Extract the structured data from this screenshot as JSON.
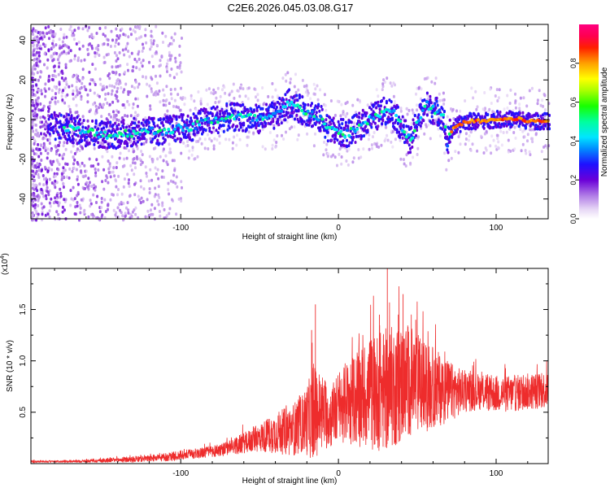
{
  "title": "C2E6.2026.045.03.08.G17",
  "chart_data": [
    {
      "type": "heatmap",
      "name": "spectrogram",
      "xlabel": "Height of straight line (km)",
      "ylabel": "Frequency (Hz)",
      "xlim": [
        -195,
        133
      ],
      "ylim": [
        -50,
        48
      ],
      "xticks": [
        -100,
        0,
        100
      ],
      "xtick_labels": [
        "-100",
        "0",
        "100"
      ],
      "yticks": [
        -40,
        -20,
        0,
        20,
        40
      ],
      "ytick_labels": [
        "-40",
        "-20",
        "0",
        "20",
        "40"
      ],
      "ridge": {
        "x": [
          -195,
          -175,
          -165,
          -155,
          -145,
          -135,
          -125,
          -115,
          -105,
          -95,
          -85,
          -78,
          -70,
          -60,
          -50,
          -40,
          -32,
          -25,
          -18,
          -12,
          -5,
          0,
          5,
          12,
          20,
          25,
          30,
          35,
          40,
          43,
          45,
          48,
          52,
          55,
          58,
          62,
          66,
          68,
          70,
          72,
          75,
          80,
          90,
          100,
          110,
          115,
          120,
          133
        ],
        "freq": [
          -1,
          -3,
          -5,
          -6,
          -7,
          -6,
          -5,
          -5,
          -4,
          -3,
          0,
          1,
          2,
          2,
          1,
          3,
          9,
          6,
          4,
          1,
          -5,
          -6,
          -6,
          -3,
          2,
          3,
          6,
          3,
          -4,
          -8,
          -11,
          -2,
          4,
          8,
          6,
          5,
          2,
          -12,
          -6,
          -4,
          -2,
          0,
          0,
          1,
          1,
          1,
          0,
          0
        ]
      },
      "colorbar": {
        "label": "Normalized spectral amplitude",
        "range": [
          0,
          1
        ],
        "ticks": [
          0.0,
          0.2,
          0.4,
          0.6,
          0.8
        ],
        "tick_labels": [
          "0.0",
          "0.2",
          "0.4",
          "0.6",
          "0.8"
        ]
      }
    },
    {
      "type": "line",
      "name": "snr",
      "xlabel": "Height of straight line (km)",
      "ylabel": "SNR (10 * v/v)",
      "scale_label": "(x10",
      "scale_exp": "4",
      "scale_close": ")",
      "xlim": [
        -195,
        133
      ],
      "ylim": [
        0,
        1.9
      ],
      "xticks": [
        -100,
        0,
        100
      ],
      "xtick_labels": [
        "-100",
        "0",
        "100"
      ],
      "yticks": [
        0.5,
        1.0,
        1.5
      ],
      "ytick_labels": [
        "0.5",
        "1.0",
        "1.5"
      ],
      "color": "#ee2c2c",
      "envelope": {
        "x": [
          -195,
          -170,
          -150,
          -130,
          -120,
          -110,
          -100,
          -90,
          -80,
          -70,
          -60,
          -50,
          -40,
          -30,
          -22,
          -18,
          -15,
          -10,
          -5,
          0,
          5,
          10,
          15,
          20,
          25,
          30,
          35,
          40,
          45,
          50,
          55,
          60,
          65,
          70,
          75,
          80,
          90,
          100,
          110,
          120,
          133
        ],
        "base": [
          0.02,
          0.02,
          0.03,
          0.04,
          0.05,
          0.06,
          0.08,
          0.1,
          0.12,
          0.15,
          0.2,
          0.25,
          0.3,
          0.32,
          0.4,
          0.45,
          0.5,
          0.5,
          0.45,
          0.55,
          0.6,
          0.62,
          0.65,
          0.68,
          0.7,
          0.72,
          0.75,
          0.78,
          0.8,
          0.78,
          0.75,
          0.74,
          0.72,
          0.7,
          0.7,
          0.7,
          0.7,
          0.68,
          0.68,
          0.7,
          0.72
        ],
        "amp": [
          0.01,
          0.01,
          0.02,
          0.03,
          0.03,
          0.04,
          0.05,
          0.05,
          0.06,
          0.07,
          0.1,
          0.14,
          0.2,
          0.25,
          0.3,
          0.4,
          0.45,
          0.38,
          0.3,
          0.35,
          0.4,
          0.45,
          0.5,
          0.55,
          0.58,
          0.6,
          0.6,
          0.58,
          0.55,
          0.5,
          0.45,
          0.4,
          0.35,
          0.3,
          0.25,
          0.2,
          0.18,
          0.18,
          0.18,
          0.18,
          0.18
        ]
      },
      "spikes": [
        {
          "x": -14.6,
          "y": 1.55
        },
        {
          "x": -17.0,
          "y": 1.3
        },
        {
          "x": 31.0,
          "y": 1.92
        },
        {
          "x": 41.0,
          "y": 1.65
        },
        {
          "x": 38.0,
          "y": 1.45
        },
        {
          "x": 26.0,
          "y": 1.45
        },
        {
          "x": 49.0,
          "y": 1.4
        }
      ]
    }
  ]
}
